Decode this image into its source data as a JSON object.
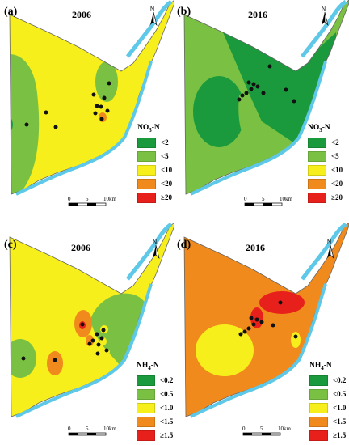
{
  "panels": [
    {
      "id": "a",
      "label": "(a)",
      "year": "2006",
      "legend": {
        "title_main": "NO",
        "title_sub": "3",
        "title_rest": "-N",
        "items": [
          {
            "label": "<2",
            "color": "#1a9a3c"
          },
          {
            "label": "<5",
            "color": "#7ac143"
          },
          {
            "label": "<10",
            "color": "#f7ef1b"
          },
          {
            "label": "<20",
            "color": "#f08a1c"
          },
          {
            "label": "≥20",
            "color": "#e8201c"
          }
        ]
      }
    },
    {
      "id": "b",
      "label": "(b)",
      "year": "2016",
      "legend": {
        "title_main": "NO",
        "title_sub": "3",
        "title_rest": "-N",
        "items": [
          {
            "label": "<2",
            "color": "#1a9a3c"
          },
          {
            "label": "<5",
            "color": "#7ac143"
          },
          {
            "label": "<10",
            "color": "#f7ef1b"
          },
          {
            "label": "<20",
            "color": "#f08a1c"
          },
          {
            "label": "≥20",
            "color": "#e8201c"
          }
        ]
      }
    },
    {
      "id": "c",
      "label": "(c)",
      "year": "2006",
      "legend": {
        "title_main": "NH",
        "title_sub": "4",
        "title_rest": "-N",
        "items": [
          {
            "label": "<0.2",
            "color": "#1a9a3c"
          },
          {
            "label": "<0.5",
            "color": "#7ac143"
          },
          {
            "label": "<1.0",
            "color": "#f7ef1b"
          },
          {
            "label": "<1.5",
            "color": "#f08a1c"
          },
          {
            "label": "≥1.5",
            "color": "#e8201c"
          }
        ]
      }
    },
    {
      "id": "d",
      "label": "(d)",
      "year": "2016",
      "legend": {
        "title_main": "NH",
        "title_sub": "4",
        "title_rest": "-N",
        "items": [
          {
            "label": "<0.2",
            "color": "#1a9a3c"
          },
          {
            "label": "<0.5",
            "color": "#7ac143"
          },
          {
            "label": "<1.0",
            "color": "#f7ef1b"
          },
          {
            "label": "<1.5",
            "color": "#f08a1c"
          },
          {
            "label": "≥1.5",
            "color": "#e8201c"
          }
        ]
      }
    }
  ],
  "scale": {
    "ticks": [
      "0",
      "5",
      "10km"
    ]
  },
  "north_label": "N",
  "colors": {
    "river": "#5ec8e8",
    "outline": "#666666"
  }
}
